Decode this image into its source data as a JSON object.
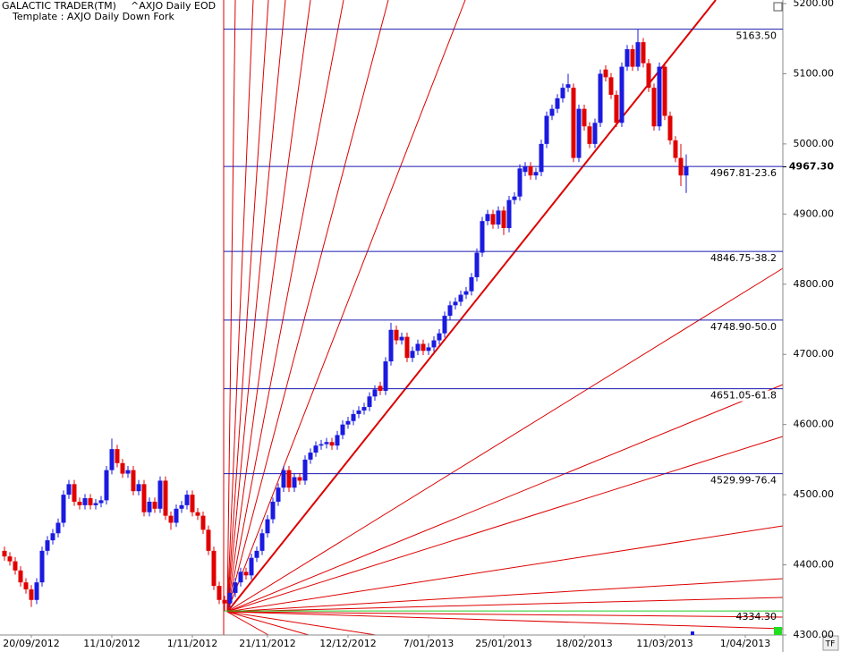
{
  "chart_data": {
    "type": "candlestick",
    "title": "GALACTIC TRADER(TM)",
    "subtitle": "^AXJO Daily EOD",
    "template": "Template : AXJO Daily Down Fork",
    "x": [
      "13/09/2012",
      "14/09/2012",
      "17/09/2012",
      "18/09/2012",
      "19/09/2012",
      "20/09/2012",
      "21/09/2012",
      "24/09/2012",
      "25/09/2012",
      "26/09/2012",
      "27/09/2012",
      "28/09/2012",
      "1/10/2012",
      "2/10/2012",
      "3/10/2012",
      "4/10/2012",
      "5/10/2012",
      "8/10/2012",
      "9/10/2012",
      "10/10/2012",
      "11/10/2012",
      "12/10/2012",
      "15/10/2012",
      "16/10/2012",
      "17/10/2012",
      "18/10/2012",
      "19/10/2012",
      "22/10/2012",
      "23/10/2012",
      "24/10/2012",
      "25/10/2012",
      "26/10/2012",
      "29/10/2012",
      "30/10/2012",
      "31/10/2012",
      "1/11/2012",
      "2/11/2012",
      "5/11/2012",
      "6/11/2012",
      "7/11/2012",
      "8/11/2012",
      "9/11/2012",
      "12/11/2012",
      "13/11/2012",
      "14/11/2012",
      "15/11/2012",
      "16/11/2012",
      "19/11/2012",
      "20/11/2012",
      "21/11/2012",
      "22/11/2012",
      "23/11/2012",
      "26/11/2012",
      "27/11/2012",
      "28/11/2012",
      "29/11/2012",
      "30/11/2012",
      "3/12/2012",
      "4/12/2012",
      "5/12/2012",
      "6/12/2012",
      "7/12/2012",
      "10/12/2012",
      "11/12/2012",
      "12/12/2012",
      "13/12/2012",
      "14/12/2012",
      "17/12/2012",
      "18/12/2012",
      "19/12/2012",
      "20/12/2012",
      "21/12/2012",
      "24/12/2012",
      "27/12/2012",
      "28/12/2012",
      "31/12/2012",
      "2/01/2013",
      "3/01/2013",
      "4/01/2013",
      "7/01/2013",
      "8/01/2013",
      "9/01/2013",
      "10/01/2013",
      "11/01/2013",
      "14/01/2013",
      "15/01/2013",
      "16/01/2013",
      "17/01/2013",
      "18/01/2013",
      "21/01/2013",
      "22/01/2013",
      "23/01/2013",
      "24/01/2013",
      "25/01/2013",
      "29/01/2013",
      "30/01/2013",
      "31/01/2013",
      "1/02/2013",
      "4/02/2013",
      "5/02/2013",
      "6/02/2013",
      "7/02/2013",
      "8/02/2013",
      "11/02/2013",
      "12/02/2013",
      "13/02/2013",
      "14/02/2013",
      "15/02/2013",
      "18/02/2013",
      "19/02/2013",
      "20/02/2013",
      "21/02/2013",
      "22/02/2013",
      "25/02/2013",
      "26/02/2013",
      "27/02/2013",
      "28/02/2013",
      "1/03/2013",
      "4/03/2013",
      "5/03/2013",
      "6/03/2013",
      "7/03/2013",
      "8/03/2013",
      "11/03/2013",
      "12/03/2013",
      "13/03/2013",
      "14/03/2013",
      "15/03/2013"
    ],
    "open": [
      4420,
      4412,
      4405,
      4392,
      4375,
      4365,
      4350,
      4375,
      4420,
      4435,
      4445,
      4460,
      4500,
      4515,
      4490,
      4485,
      4495,
      4485,
      4488,
      4492,
      4535,
      4565,
      4545,
      4530,
      4535,
      4505,
      4515,
      4475,
      4490,
      4480,
      4520,
      4470,
      4460,
      4480,
      4485,
      4500,
      4475,
      4470,
      4450,
      4420,
      4370,
      4350,
      4345,
      4360,
      4375,
      4390,
      4385,
      4410,
      4420,
      4445,
      4465,
      4490,
      4510,
      4535,
      4510,
      4525,
      4520,
      4550,
      4560,
      4570,
      4572,
      4575,
      4570,
      4585,
      4600,
      4605,
      4615,
      4620,
      4625,
      4640,
      4655,
      4648,
      4690,
      4735,
      4720,
      4725,
      4695,
      4705,
      4715,
      4705,
      4710,
      4720,
      4730,
      4755,
      4770,
      4775,
      4785,
      4790,
      4810,
      4845,
      4890,
      4900,
      4885,
      4905,
      4880,
      4920,
      4925,
      4960,
      4968,
      4955,
      4960,
      5000,
      5040,
      5050,
      5065,
      5080,
      5080,
      4980,
      5050,
      5025,
      5000,
      5030,
      5106,
      5095,
      5070,
      5030,
      5110,
      5135,
      5110,
      5145,
      5115,
      5080,
      5025,
      5110,
      5040,
      5005,
      4980,
      4955
    ],
    "high": [
      4426,
      4418,
      4411,
      4398,
      4381,
      4371,
      4381,
      4426,
      4441,
      4451,
      4466,
      4506,
      4521,
      4521,
      4496,
      4501,
      4501,
      4494,
      4498,
      4541,
      4580,
      4571,
      4551,
      4541,
      4541,
      4521,
      4521,
      4496,
      4496,
      4526,
      4526,
      4476,
      4486,
      4491,
      4506,
      4506,
      4481,
      4476,
      4456,
      4426,
      4376,
      4356,
      4366,
      4381,
      4396,
      4396,
      4416,
      4426,
      4451,
      4471,
      4496,
      4516,
      4541,
      4541,
      4531,
      4531,
      4556,
      4566,
      4576,
      4578,
      4581,
      4581,
      4591,
      4606,
      4611,
      4621,
      4626,
      4631,
      4646,
      4656,
      4661,
      4696,
      4745,
      4741,
      4731,
      4731,
      4711,
      4721,
      4721,
      4716,
      4726,
      4736,
      4761,
      4776,
      4781,
      4791,
      4796,
      4816,
      4851,
      4896,
      4906,
      4906,
      4911,
      4911,
      4926,
      4931,
      4971,
      4974,
      4974,
      4966,
      5006,
      5046,
      5056,
      5071,
      5086,
      5100,
      5086,
      5056,
      5056,
      5031,
      5036,
      5106,
      5112,
      5101,
      5076,
      5116,
      5141,
      5141,
      5163.5,
      5151,
      5121,
      5086,
      5116,
      5116,
      5046,
      5011,
      5000,
      4985
    ],
    "low": [
      4406,
      4399,
      4386,
      4369,
      4359,
      4340,
      4344,
      4369,
      4414,
      4429,
      4439,
      4454,
      4494,
      4484,
      4479,
      4479,
      4479,
      4479,
      4482,
      4486,
      4529,
      4539,
      4524,
      4524,
      4499,
      4499,
      4469,
      4469,
      4474,
      4474,
      4464,
      4450,
      4454,
      4474,
      4479,
      4469,
      4464,
      4444,
      4414,
      4364,
      4344,
      4334.3,
      4339,
      4354,
      4369,
      4379,
      4379,
      4404,
      4414,
      4439,
      4459,
      4484,
      4504,
      4504,
      4504,
      4514,
      4514,
      4544,
      4554,
      4564,
      4566,
      4564,
      4564,
      4579,
      4594,
      4599,
      4609,
      4614,
      4619,
      4634,
      4642,
      4642,
      4684,
      4714,
      4714,
      4689,
      4689,
      4699,
      4699,
      4699,
      4704,
      4714,
      4724,
      4749,
      4764,
      4769,
      4779,
      4784,
      4804,
      4839,
      4884,
      4879,
      4879,
      4870,
      4874,
      4914,
      4919,
      4954,
      4949,
      4949,
      4954,
      4994,
      5034,
      5044,
      5059,
      5074,
      4974,
      4974,
      5019,
      4994,
      4994,
      5024,
      5089,
      5064,
      5024,
      5024,
      5104,
      5104,
      5104,
      5109,
      5074,
      5019,
      5019,
      5034,
      4999,
      4974,
      4940,
      4930
    ],
    "close": [
      4412,
      4405,
      4392,
      4375,
      4365,
      4350,
      4375,
      4420,
      4435,
      4445,
      4460,
      4500,
      4515,
      4490,
      4485,
      4495,
      4485,
      4488,
      4492,
      4535,
      4565,
      4545,
      4530,
      4535,
      4505,
      4515,
      4475,
      4490,
      4480,
      4520,
      4470,
      4460,
      4480,
      4485,
      4500,
      4475,
      4470,
      4450,
      4420,
      4370,
      4350,
      4345,
      4360,
      4375,
      4390,
      4385,
      4410,
      4420,
      4445,
      4465,
      4490,
      4510,
      4535,
      4510,
      4525,
      4520,
      4550,
      4560,
      4570,
      4572,
      4575,
      4570,
      4585,
      4600,
      4605,
      4615,
      4620,
      4625,
      4640,
      4650,
      4648,
      4690,
      4735,
      4720,
      4725,
      4695,
      4705,
      4715,
      4705,
      4710,
      4720,
      4730,
      4755,
      4770,
      4775,
      4785,
      4790,
      4810,
      4845,
      4890,
      4900,
      4885,
      4905,
      4880,
      4920,
      4925,
      4965,
      4968,
      4955,
      4960,
      5000,
      5040,
      5050,
      5065,
      5080,
      5085,
      4980,
      5050,
      5025,
      5000,
      5030,
      5100,
      5095,
      5070,
      5030,
      5110,
      5135,
      5110,
      5145,
      5115,
      5080,
      5025,
      5110,
      5040,
      5005,
      4980,
      4955,
      4967.3
    ],
    "up_color": "#1a1ae0",
    "down_color": "#e00000",
    "ylim": [
      4300,
      5200
    ],
    "yticks": [
      {
        "value": 4300,
        "label": "4300.00"
      },
      {
        "value": 4400,
        "label": "4400.00"
      },
      {
        "value": 4500,
        "label": "4500.00"
      },
      {
        "value": 4600,
        "label": "4600.00"
      },
      {
        "value": 4700,
        "label": "4700.00"
      },
      {
        "value": 4800,
        "label": "4800.00"
      },
      {
        "value": 4900,
        "label": "4900.00"
      },
      {
        "value": 5000,
        "label": "5000.00"
      },
      {
        "value": 5100,
        "label": "5100.00"
      },
      {
        "value": 5200,
        "label": "5200.00"
      }
    ],
    "xticks": [
      "20/09/2012",
      "11/10/2012",
      "1/11/2012",
      "21/11/2012",
      "12/12/2012",
      "7/01/2013",
      "25/01/2013",
      "18/02/2013",
      "11/03/2013",
      "1/04/2013"
    ],
    "levels": [
      {
        "value": 5163.5,
        "label": "5163.50"
      },
      {
        "value": 4967.81,
        "label": "4967.81-23.6"
      },
      {
        "value": 4846.75,
        "label": "4846.75-38.2"
      },
      {
        "value": 4748.9,
        "label": "4748.90-50.0"
      },
      {
        "value": 4651.05,
        "label": "4651.05-61.8"
      },
      {
        "value": 4529.99,
        "label": "4529.99-76.4"
      }
    ],
    "level_color": "#1a1ab0",
    "base_level": {
      "value": 4334.3,
      "label": "4334.30",
      "color": "#22cc22"
    },
    "last_price": {
      "value": 4967.3,
      "label": "4967.30"
    },
    "tf_button": "TF"
  }
}
